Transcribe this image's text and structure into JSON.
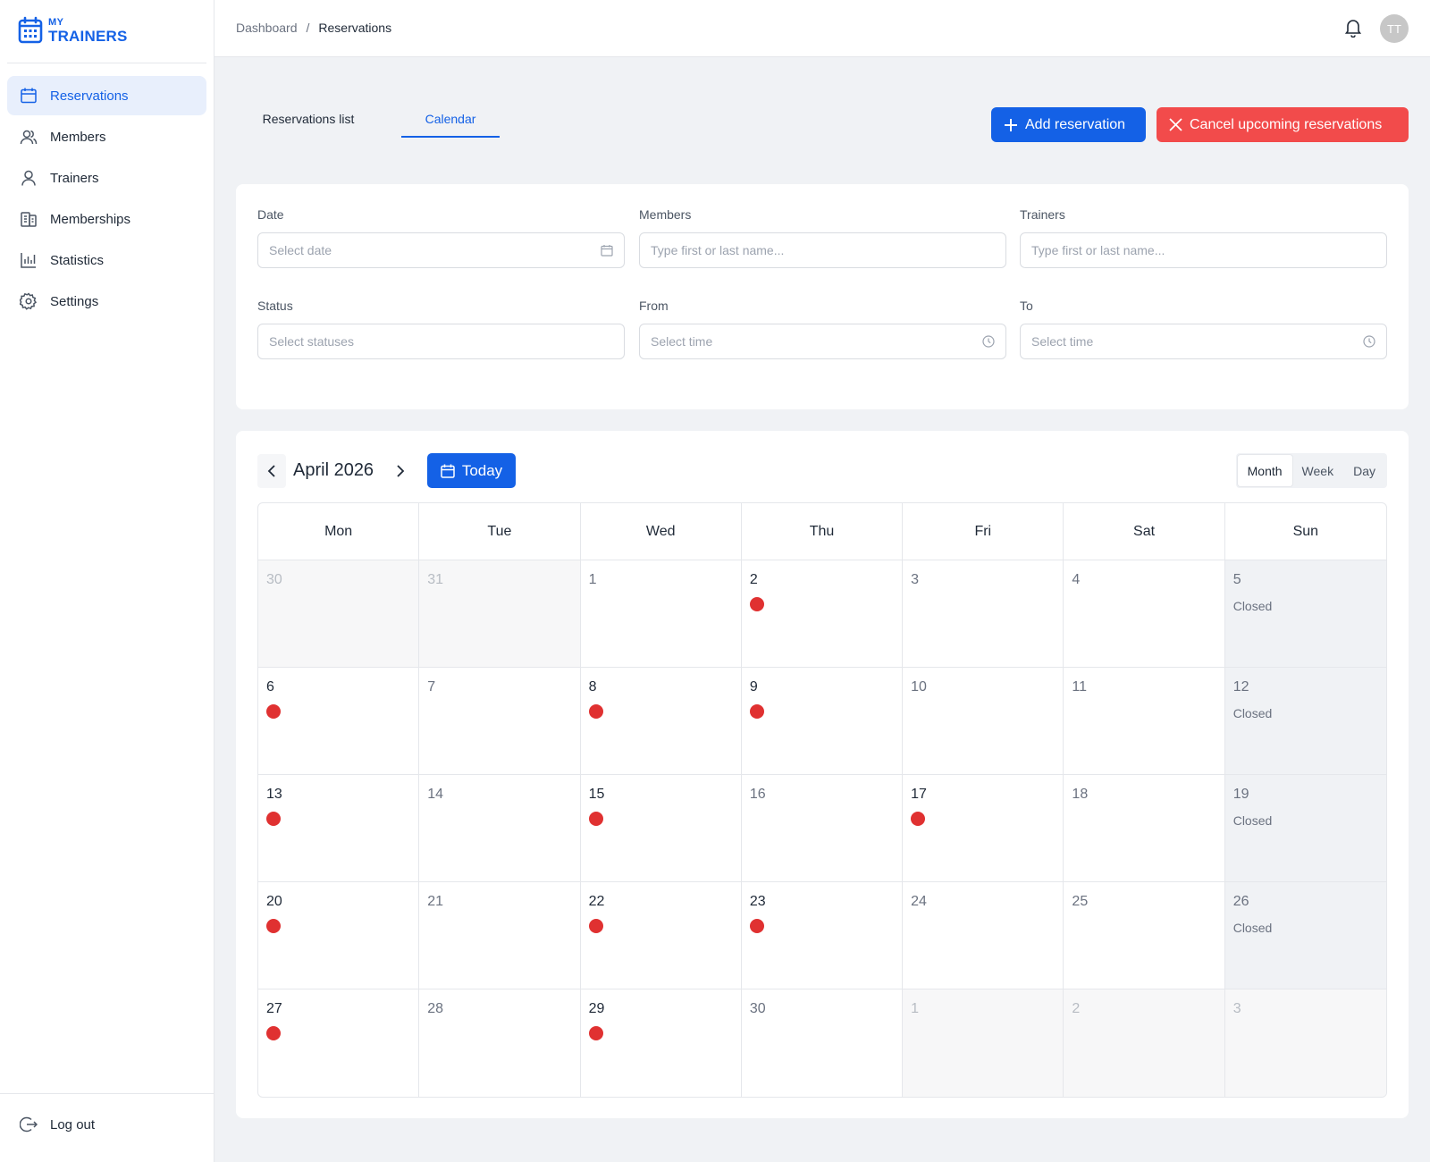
{
  "app": {
    "logo_small": "MY",
    "logo_big": "TRAINERS"
  },
  "sidebar": {
    "items": [
      {
        "label": "Reservations",
        "icon": "calendar-icon",
        "active": true
      },
      {
        "label": "Members",
        "icon": "members-icon",
        "active": false
      },
      {
        "label": "Trainers",
        "icon": "user-icon",
        "active": false
      },
      {
        "label": "Memberships",
        "icon": "membership-icon",
        "active": false
      },
      {
        "label": "Statistics",
        "icon": "bar-chart-icon",
        "active": false
      },
      {
        "label": "Settings",
        "icon": "gear-icon",
        "active": false
      }
    ],
    "logout_label": "Log out"
  },
  "header": {
    "breadcrumb": [
      "Dashboard",
      "Reservations"
    ],
    "separator": "/",
    "avatar_initials": "TT"
  },
  "tabs": {
    "list_label": "Reservations list",
    "calendar_label": "Calendar",
    "active": "Calendar"
  },
  "actions": {
    "add_label": "Add reservation",
    "cancel_label": "Cancel upcoming reservations"
  },
  "filters": {
    "date": {
      "label": "Date",
      "placeholder": "Select date"
    },
    "members": {
      "label": "Members",
      "placeholder": "Type first or last name..."
    },
    "trainers": {
      "label": "Trainers",
      "placeholder": "Type first or last name..."
    },
    "status": {
      "label": "Status",
      "placeholder": "Select statuses"
    },
    "from": {
      "label": "From",
      "placeholder": "Select time"
    },
    "to": {
      "label": "To",
      "placeholder": "Select time"
    }
  },
  "calendar": {
    "month_label": "April 2026",
    "today_label": "Today",
    "views": [
      "Month",
      "Week",
      "Day"
    ],
    "active_view": "Month",
    "weekdays": [
      "Mon",
      "Tue",
      "Wed",
      "Thu",
      "Fri",
      "Sat",
      "Sun"
    ],
    "closed_label": "Closed",
    "weeks": [
      [
        {
          "day": "30",
          "outside": true
        },
        {
          "day": "31",
          "outside": true
        },
        {
          "day": "1"
        },
        {
          "day": "2",
          "reservation": true
        },
        {
          "day": "3"
        },
        {
          "day": "4"
        },
        {
          "day": "5",
          "closed": true
        }
      ],
      [
        {
          "day": "6",
          "reservation": true
        },
        {
          "day": "7"
        },
        {
          "day": "8",
          "reservation": true
        },
        {
          "day": "9",
          "reservation": true
        },
        {
          "day": "10"
        },
        {
          "day": "11"
        },
        {
          "day": "12",
          "closed": true
        }
      ],
      [
        {
          "day": "13",
          "reservation": true
        },
        {
          "day": "14"
        },
        {
          "day": "15",
          "reservation": true
        },
        {
          "day": "16"
        },
        {
          "day": "17",
          "reservation": true
        },
        {
          "day": "18"
        },
        {
          "day": "19",
          "closed": true
        }
      ],
      [
        {
          "day": "20",
          "reservation": true
        },
        {
          "day": "21"
        },
        {
          "day": "22",
          "reservation": true
        },
        {
          "day": "23",
          "reservation": true
        },
        {
          "day": "24"
        },
        {
          "day": "25"
        },
        {
          "day": "26",
          "closed": true
        }
      ],
      [
        {
          "day": "27",
          "reservation": true
        },
        {
          "day": "28"
        },
        {
          "day": "29",
          "reservation": true
        },
        {
          "day": "30"
        },
        {
          "day": "1",
          "outside": true
        },
        {
          "day": "2",
          "outside": true
        },
        {
          "day": "3",
          "outside": true
        }
      ]
    ]
  },
  "colors": {
    "accent": "#1461e6",
    "danger": "#f24b4b",
    "reservation_dot": "#e03131"
  }
}
